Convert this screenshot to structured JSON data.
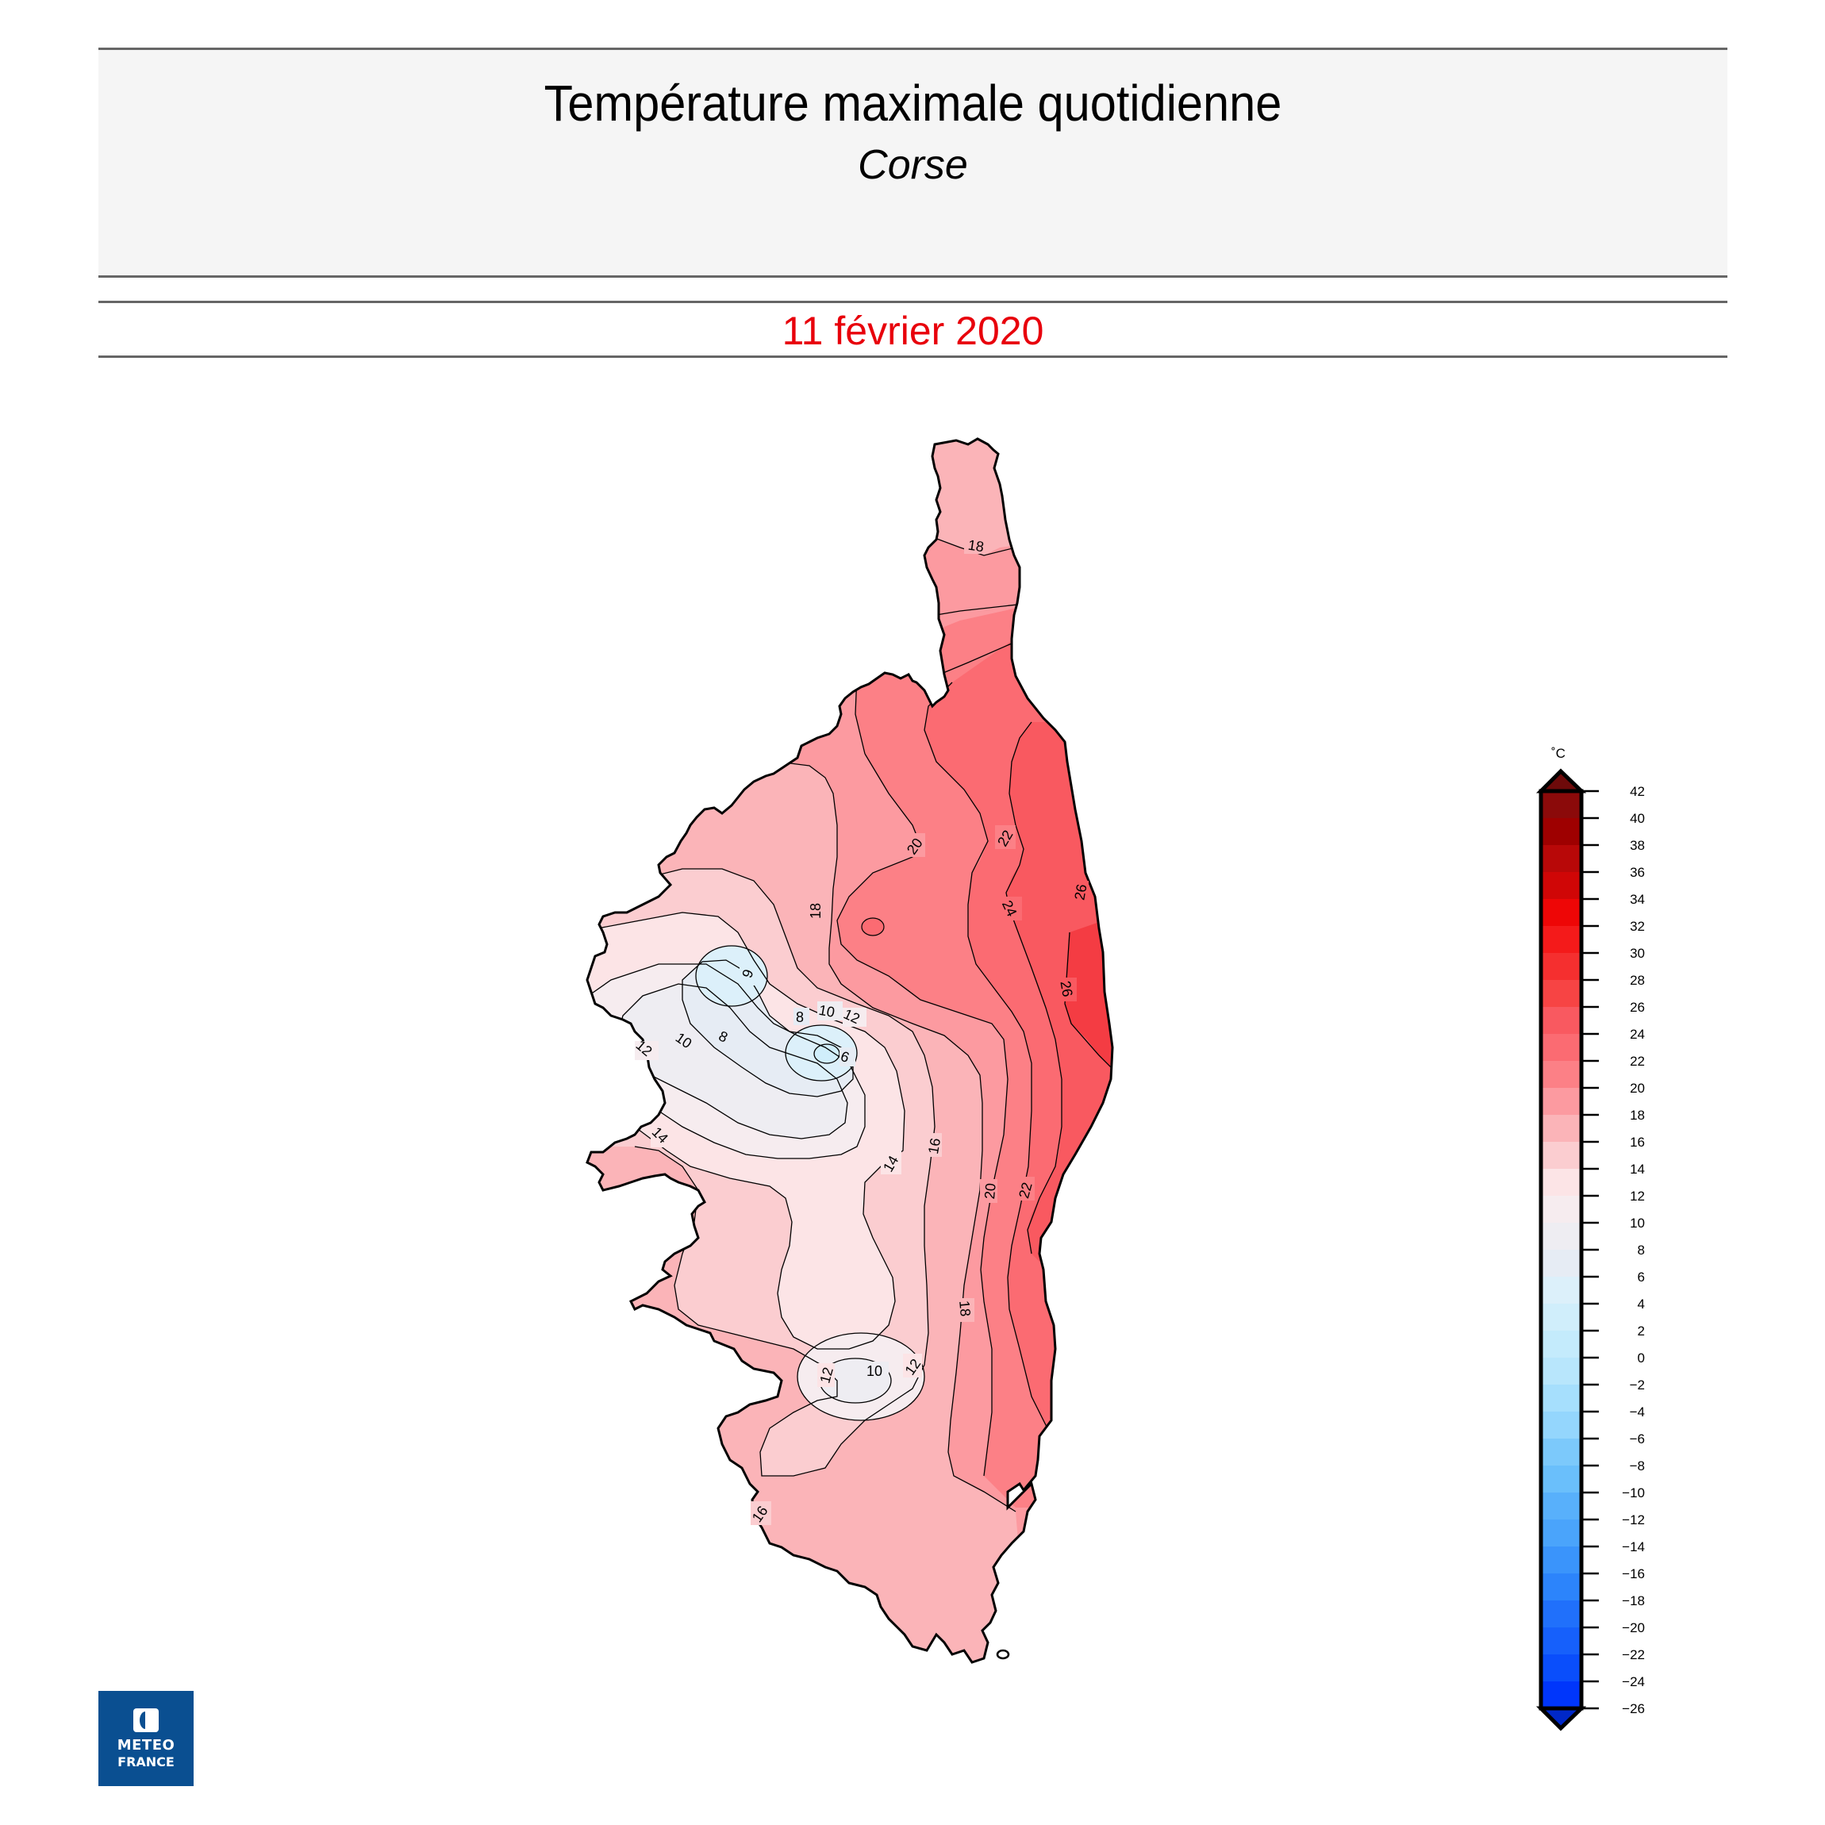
{
  "header": {
    "title": "Température maximale quotidienne",
    "subtitle": "Corse",
    "date": "11 février 2020",
    "date_color": "#e8000b"
  },
  "logo": {
    "line1": "METEO",
    "line2": "FRANCE",
    "color": "#0a4f91"
  },
  "colorbar": {
    "unit": "˚C",
    "ticks": [
      "42",
      "40",
      "38",
      "36",
      "34",
      "32",
      "30",
      "28",
      "26",
      "24",
      "22",
      "20",
      "18",
      "16",
      "14",
      "12",
      "10",
      "8",
      "6",
      "4",
      "2",
      "0",
      "−2",
      "−4",
      "−6",
      "−8",
      "−10",
      "−12",
      "−14",
      "−16",
      "−18",
      "−20",
      "−22",
      "−24",
      "−26"
    ],
    "colors": [
      "#8b0a0a",
      "#9e0000",
      "#b80808",
      "#d00606",
      "#ee0606",
      "#f41a1a",
      "#f52f2f",
      "#f74444",
      "#f95960",
      "#fb6b72",
      "#fc8086",
      "#fc9aa0",
      "#fbb4b8",
      "#fbcdd0",
      "#fce4e6",
      "#f6ecef",
      "#eeedf2",
      "#e6ecf4",
      "#dcf0fa",
      "#d0eefb",
      "#c4ebfc",
      "#b8e6fc",
      "#a6dffd",
      "#94d6fd",
      "#7cc9fb",
      "#6abffb",
      "#58b0fb",
      "#4aa4fb",
      "#3a94fb",
      "#2c84fb",
      "#2070fb",
      "#1660fb",
      "#0a4efb",
      "#0036fb"
    ],
    "over_color": "#6e0a0a",
    "under_color": "#0028c8"
  },
  "chart_data": {
    "type": "heatmap",
    "title": "Température maximale quotidienne",
    "subtitle": "Corse",
    "date": "11 février 2020",
    "unit": "˚C",
    "colorbar_range": [
      -26,
      42
    ],
    "colorbar_step": 2,
    "contour_levels_shown": [
      6,
      8,
      10,
      12,
      14,
      16,
      18,
      20,
      22,
      24,
      26
    ],
    "contour_labels": [
      {
        "value": 18,
        "location": "Cap Corse north"
      },
      {
        "value": 20,
        "location": "north-central (Balagne/Nebbio)"
      },
      {
        "value": 22,
        "location": "north-east"
      },
      {
        "value": 24,
        "location": "east (Castagniccia)"
      },
      {
        "value": 26,
        "location": "east coast (Plaine orientale)"
      },
      {
        "value": 18,
        "location": "central mountains east edge"
      },
      {
        "value": 6,
        "location": "Monte Cinto massif"
      },
      {
        "value": 6,
        "location": "Monte Rotondo massif"
      },
      {
        "value": 8,
        "location": "central mountains"
      },
      {
        "value": 10,
        "location": "central mountains"
      },
      {
        "value": 12,
        "location": "central mountains"
      },
      {
        "value": 14,
        "location": "west-central"
      },
      {
        "value": 16,
        "location": "central-east"
      },
      {
        "value": 20,
        "location": "east-central"
      },
      {
        "value": 22,
        "location": "east-central"
      },
      {
        "value": 24,
        "location": "east coast"
      },
      {
        "value": 18,
        "location": "south-east"
      },
      {
        "value": 10,
        "location": "Monte Incudine area"
      },
      {
        "value": 12,
        "location": "Monte Incudine area"
      },
      {
        "value": 16,
        "location": "south-west"
      }
    ],
    "min_value_approx": 5,
    "max_value_approx": 27,
    "pattern": "Cold minimum (<6°C) in central-north mountains, warm maximum (>26°C) on north-east coast; temperatures increase west-to-east."
  }
}
